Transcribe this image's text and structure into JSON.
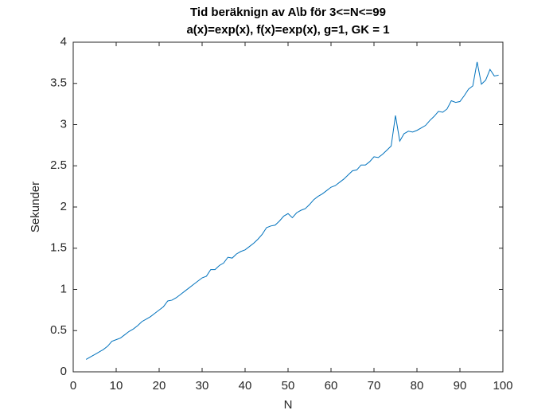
{
  "chart_data": {
    "type": "line",
    "title": "Tid beräknign av A\\b för 3<=N<=99",
    "subtitle": "a(x)=exp(x), f(x)=exp(x), g=1, GK = 1",
    "x_label": "N",
    "y_label": "Sekunder",
    "x": [
      3,
      4,
      5,
      6,
      7,
      8,
      9,
      10,
      11,
      12,
      13,
      14,
      15,
      16,
      17,
      18,
      19,
      20,
      21,
      22,
      23,
      24,
      25,
      26,
      27,
      28,
      29,
      30,
      31,
      32,
      33,
      34,
      35,
      36,
      37,
      38,
      39,
      40,
      41,
      42,
      43,
      44,
      45,
      46,
      47,
      48,
      49,
      50,
      51,
      52,
      53,
      54,
      55,
      56,
      57,
      58,
      59,
      60,
      61,
      62,
      63,
      64,
      65,
      66,
      67,
      68,
      69,
      70,
      71,
      72,
      73,
      74,
      75,
      76,
      77,
      78,
      79,
      80,
      81,
      82,
      83,
      84,
      85,
      86,
      87,
      88,
      89,
      90,
      91,
      92,
      93,
      94,
      95,
      96,
      97,
      98,
      99
    ],
    "series": [
      {
        "color": "#0072bd",
        "values": [
          0.15,
          0.18,
          0.21,
          0.24,
          0.27,
          0.31,
          0.37,
          0.39,
          0.41,
          0.45,
          0.49,
          0.52,
          0.56,
          0.61,
          0.64,
          0.67,
          0.71,
          0.75,
          0.79,
          0.86,
          0.87,
          0.9,
          0.94,
          0.98,
          1.02,
          1.06,
          1.1,
          1.14,
          1.16,
          1.24,
          1.24,
          1.29,
          1.32,
          1.39,
          1.38,
          1.43,
          1.46,
          1.48,
          1.52,
          1.56,
          1.61,
          1.67,
          1.75,
          1.77,
          1.78,
          1.83,
          1.89,
          1.92,
          1.87,
          1.93,
          1.96,
          1.98,
          2.03,
          2.09,
          2.13,
          2.16,
          2.2,
          2.24,
          2.26,
          2.3,
          2.34,
          2.39,
          2.44,
          2.45,
          2.51,
          2.51,
          2.55,
          2.61,
          2.6,
          2.64,
          2.69,
          2.74,
          3.11,
          2.8,
          2.89,
          2.92,
          2.91,
          2.93,
          2.96,
          2.99,
          3.05,
          3.1,
          3.16,
          3.15,
          3.19,
          3.29,
          3.27,
          3.28,
          3.35,
          3.43,
          3.47,
          3.76,
          3.49,
          3.54,
          3.67,
          3.59,
          3.6
        ]
      }
    ],
    "xlim": [
      0,
      100
    ],
    "xticks": [
      0,
      10,
      20,
      30,
      40,
      50,
      60,
      70,
      80,
      90,
      100
    ],
    "ylim": [
      0,
      4
    ],
    "yticks": [
      0,
      0.5,
      1,
      1.5,
      2,
      2.5,
      3,
      3.5,
      4
    ],
    "grid": false
  }
}
